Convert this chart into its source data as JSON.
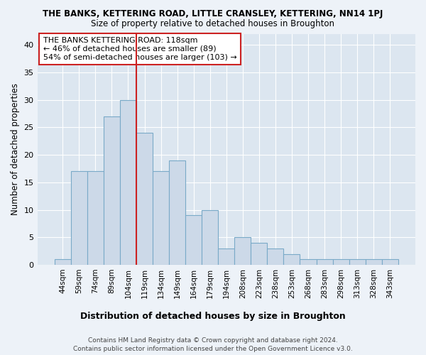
{
  "title": "THE BANKS, KETTERING ROAD, LITTLE CRANSLEY, KETTERING, NN14 1PJ",
  "subtitle": "Size of property relative to detached houses in Broughton",
  "xlabel": "Distribution of detached houses by size in Broughton",
  "ylabel": "Number of detached properties",
  "bar_color": "#ccd9e8",
  "bar_edge_color": "#7aaac8",
  "background_color": "#dce6f0",
  "grid_color": "#ffffff",
  "fig_bg_color": "#edf2f8",
  "categories": [
    "44sqm",
    "59sqm",
    "74sqm",
    "89sqm",
    "104sqm",
    "119sqm",
    "134sqm",
    "149sqm",
    "164sqm",
    "179sqm",
    "194sqm",
    "208sqm",
    "223sqm",
    "238sqm",
    "253sqm",
    "268sqm",
    "283sqm",
    "298sqm",
    "313sqm",
    "328sqm",
    "343sqm"
  ],
  "values": [
    1,
    17,
    17,
    27,
    30,
    24,
    17,
    19,
    9,
    10,
    3,
    5,
    4,
    3,
    2,
    1,
    1,
    1,
    1,
    1,
    1
  ],
  "ylim": [
    0,
    42
  ],
  "yticks": [
    0,
    5,
    10,
    15,
    20,
    25,
    30,
    35,
    40
  ],
  "marker_idx": 5,
  "annotation_line1": "THE BANKS KETTERING ROAD: 118sqm",
  "annotation_line2": "← 46% of detached houses are smaller (89)",
  "annotation_line3": "54% of semi-detached houses are larger (103) →",
  "footer_line1": "Contains HM Land Registry data © Crown copyright and database right 2024.",
  "footer_line2": "Contains public sector information licensed under the Open Government Licence v3.0."
}
